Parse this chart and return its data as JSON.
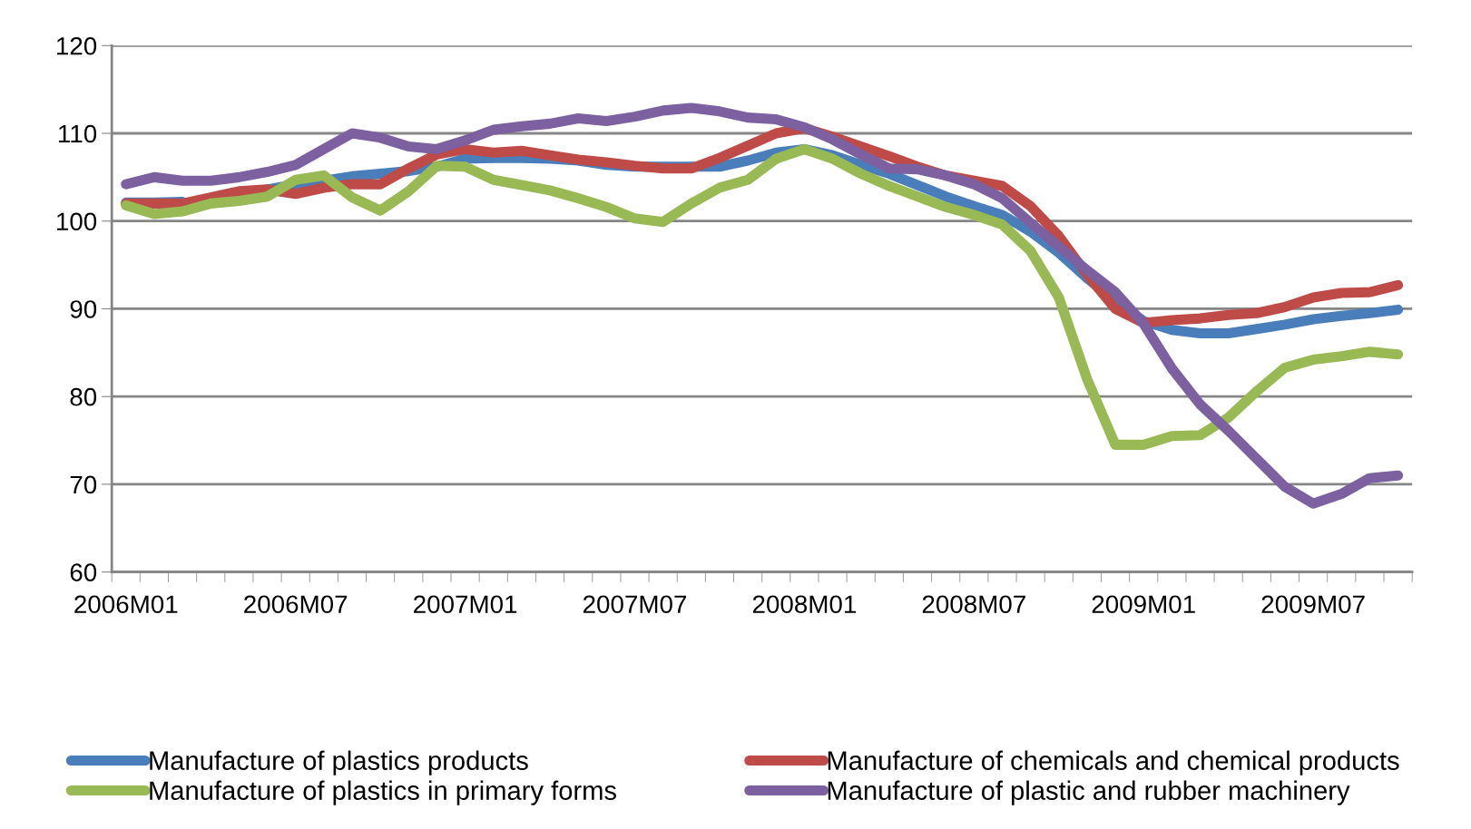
{
  "chart_data": {
    "type": "line",
    "categories": [
      "2006M01",
      null,
      null,
      null,
      null,
      null,
      "2006M07",
      null,
      null,
      null,
      null,
      null,
      "2007M01",
      null,
      null,
      null,
      null,
      null,
      "2007M07",
      null,
      null,
      null,
      null,
      null,
      "2008M01",
      null,
      null,
      null,
      null,
      null,
      "2008M07",
      null,
      null,
      null,
      null,
      null,
      "2009M01",
      null,
      null,
      null,
      null,
      null,
      "2009M07",
      null,
      null,
      null
    ],
    "series": [
      {
        "name": "Manufacture of plastics products",
        "color": "#4a7ebb",
        "values": [
          102.1,
          102.1,
          102.2,
          null,
          null,
          103.6,
          104.2,
          104.6,
          105.1,
          105.4,
          105.7,
          106.2,
          107.1,
          107.2,
          107.2,
          107.1,
          106.9,
          106.4,
          106.2,
          106.2,
          106.2,
          106.2,
          106.9,
          107.8,
          108.2,
          107.5,
          106.4,
          105.4,
          104.1,
          102.8,
          101.7,
          100.7,
          98.8,
          96.4,
          93.5,
          90.9,
          88.6,
          87.6,
          87.2,
          87.2,
          87.7,
          88.2,
          88.8,
          89.2,
          89.5,
          89.9
        ]
      },
      {
        "name": "Manufacture of chemicals and chemical products",
        "color": "#be4b48",
        "values": [
          102.0,
          102.0,
          102.0,
          102.7,
          103.4,
          103.6,
          103.1,
          103.8,
          104.2,
          104.2,
          106.0,
          107.6,
          108.2,
          107.8,
          108.0,
          107.5,
          107.0,
          106.7,
          106.3,
          106.0,
          106.0,
          107.2,
          108.6,
          110.0,
          110.6,
          109.6,
          108.5,
          107.4,
          106.2,
          105.2,
          104.6,
          104.0,
          101.7,
          98.3,
          93.9,
          90.0,
          88.4,
          88.7,
          88.9,
          89.3,
          89.5,
          90.2,
          91.3,
          91.8,
          91.9,
          92.7
        ]
      },
      {
        "name": "Manufacture of plastics in primary forms",
        "color": "#98b954",
        "values": [
          101.8,
          100.8,
          101.1,
          102.0,
          102.3,
          102.8,
          104.7,
          105.2,
          102.7,
          101.2,
          103.4,
          106.3,
          106.2,
          104.7,
          104.1,
          103.5,
          102.6,
          101.6,
          100.3,
          99.9,
          102.0,
          103.8,
          104.7,
          107.1,
          108.2,
          107.1,
          105.4,
          104.0,
          102.8,
          101.6,
          100.7,
          99.6,
          96.6,
          91.3,
          82.0,
          74.5,
          74.5,
          75.5,
          75.6,
          77.6,
          80.6,
          83.3,
          84.2,
          84.6,
          85.1,
          84.8
        ]
      },
      {
        "name": "Manufacture of plastic and rubber machinery",
        "color": "#7d60a0",
        "values": [
          104.2,
          105.0,
          104.6,
          104.6,
          105.0,
          105.6,
          106.4,
          108.2,
          110.0,
          109.5,
          108.5,
          108.2,
          109.2,
          110.4,
          110.8,
          111.1,
          111.7,
          111.4,
          111.9,
          112.6,
          112.9,
          112.5,
          111.8,
          111.6,
          110.7,
          109.3,
          107.6,
          106.0,
          105.9,
          105.2,
          104.2,
          102.6,
          99.8,
          97.1,
          94.4,
          91.9,
          88.3,
          83.2,
          79.1,
          76.1,
          72.9,
          69.7,
          67.8,
          68.9,
          70.7,
          71.0
        ]
      }
    ],
    "ylim": [
      60,
      120
    ],
    "yticks": [
      60,
      70,
      80,
      90,
      100,
      110,
      120
    ],
    "grid": "y",
    "legend": "bottom",
    "marker": "none",
    "line_style": "solid"
  }
}
